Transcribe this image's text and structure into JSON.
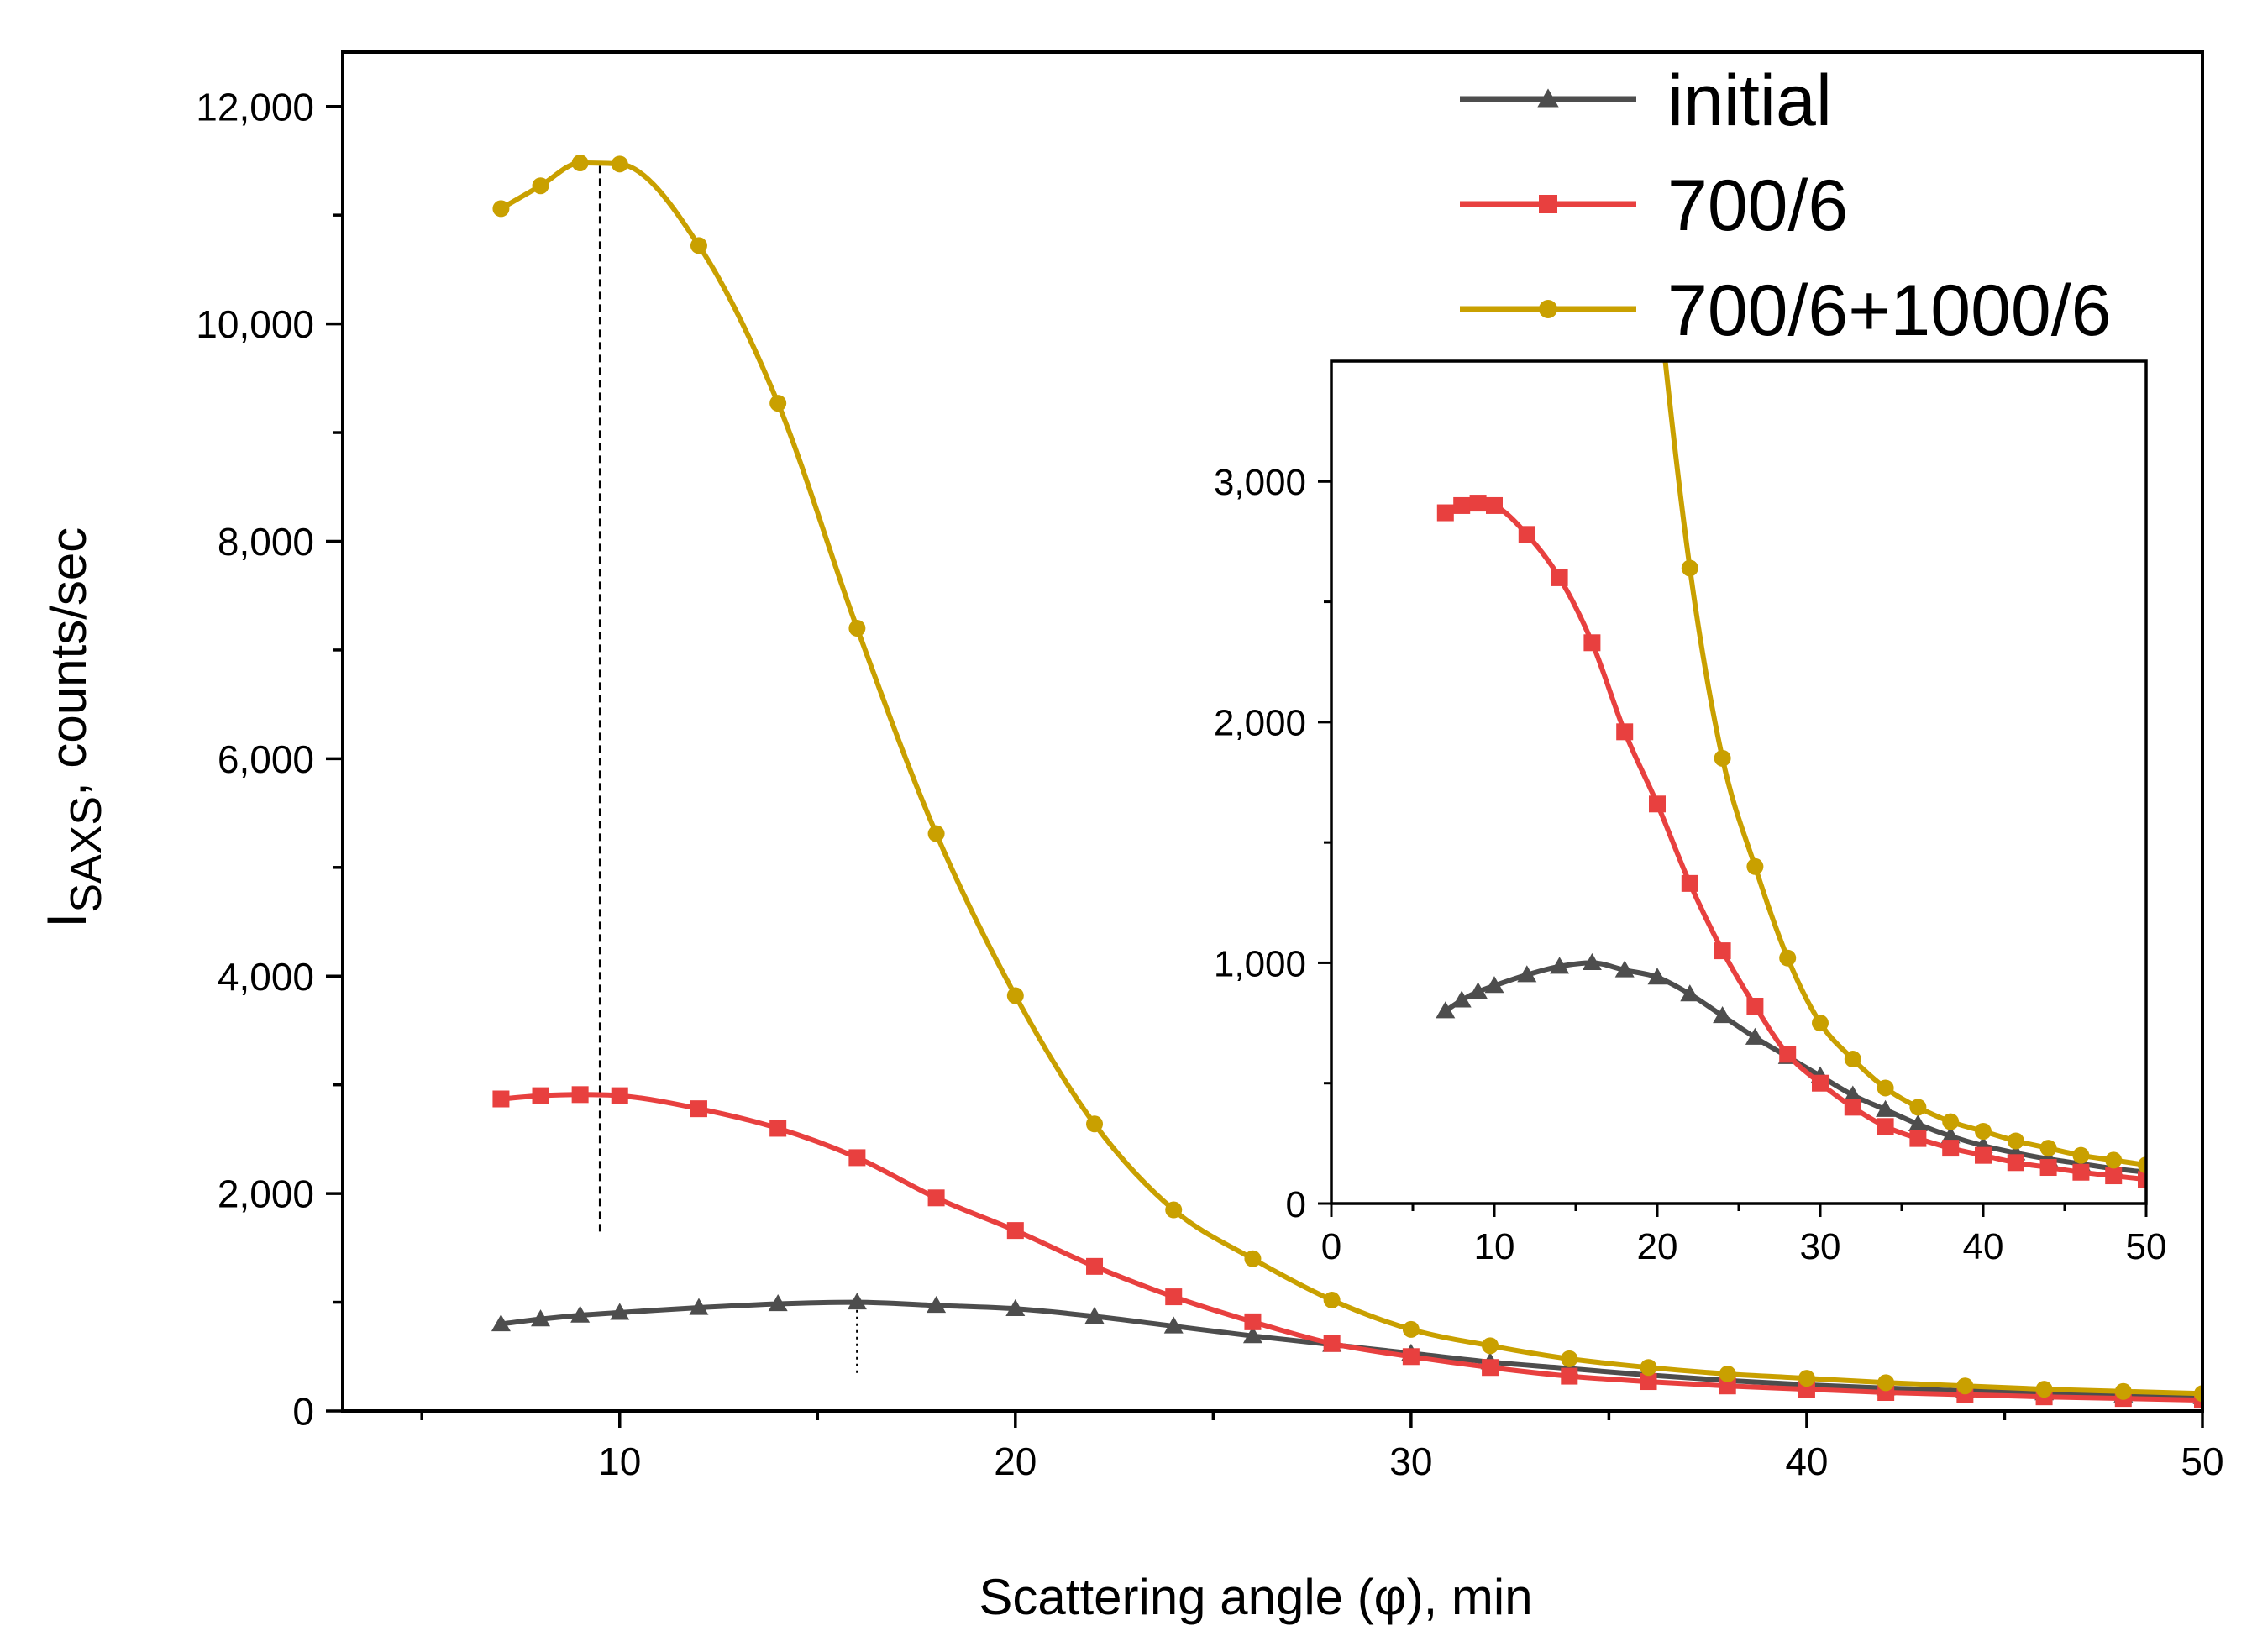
{
  "chart_data": [
    {
      "id": "main",
      "type": "line",
      "xlabel": "Scattering angle (φ), min",
      "ylabel_main": "I",
      "ylabel_sub": "SAXS",
      "ylabel_rest": ", counts/sec",
      "xlim": [
        3,
        50
      ],
      "ylim": [
        0,
        12500
      ],
      "xticks": [
        10,
        20,
        30,
        40,
        50
      ],
      "xtick_labels": [
        "10",
        "20",
        "30",
        "40",
        "50"
      ],
      "xminor": [
        5,
        15,
        25,
        35,
        45
      ],
      "yticks": [
        0,
        2000,
        4000,
        6000,
        8000,
        10000,
        12000
      ],
      "ytick_labels": [
        "0",
        "2,000",
        "4,000",
        "6,000",
        "8,000",
        "10,000",
        "12,000"
      ],
      "yminor": [
        1000,
        3000,
        5000,
        7000,
        9000,
        11000
      ],
      "legend": {
        "position": "top-right"
      },
      "annotations": [
        {
          "type": "vline",
          "x": 9.5,
          "y0": 1650,
          "y1": 11480,
          "style": "dashed"
        },
        {
          "type": "vline",
          "x": 16,
          "y0": 350,
          "y1": 1000,
          "style": "dotted"
        }
      ],
      "series": [
        {
          "name": "initial",
          "color": "#4d4d4d",
          "marker": "triangle",
          "x": [
            7,
            8,
            9,
            10,
            12,
            14,
            16,
            18,
            20,
            22,
            24,
            26,
            28,
            30,
            32,
            34,
            36,
            38,
            40,
            42,
            44,
            46,
            48,
            50
          ],
          "y": [
            800,
            845,
            880,
            905,
            950,
            985,
            1000,
            970,
            940,
            870,
            780,
            690,
            610,
            530,
            450,
            390,
            330,
            280,
            240,
            210,
            185,
            165,
            145,
            130
          ]
        },
        {
          "name": "700/6",
          "color": "#e8403f",
          "marker": "square",
          "x": [
            7,
            8,
            9,
            10,
            12,
            14,
            16,
            18,
            20,
            22,
            24,
            26,
            28,
            30,
            32,
            34,
            36,
            38,
            40,
            42,
            44,
            46,
            48,
            50
          ],
          "y": [
            2870,
            2900,
            2910,
            2900,
            2780,
            2600,
            2330,
            1960,
            1660,
            1330,
            1050,
            820,
            620,
            500,
            400,
            320,
            270,
            230,
            200,
            170,
            150,
            130,
            115,
            100
          ]
        },
        {
          "name": "700/6+1000/6",
          "color": "#c9a000",
          "marker": "circle",
          "x": [
            7,
            8,
            9,
            10,
            12,
            14,
            16,
            18,
            20,
            22,
            24,
            26,
            28,
            30,
            32,
            34,
            36,
            38,
            40,
            42,
            44,
            46,
            48,
            50
          ],
          "y": [
            11060,
            11270,
            11480,
            11470,
            10720,
            9270,
            7200,
            5310,
            3820,
            2640,
            1850,
            1400,
            1020,
            750,
            600,
            480,
            400,
            340,
            300,
            260,
            230,
            200,
            180,
            160
          ]
        }
      ]
    },
    {
      "id": "inset",
      "type": "line",
      "xlim": [
        0,
        50
      ],
      "ylim": [
        0,
        3500
      ],
      "xticks": [
        0,
        10,
        20,
        30,
        40,
        50
      ],
      "xtick_labels": [
        "0",
        "10",
        "20",
        "30",
        "40",
        "50"
      ],
      "xminor": [
        5,
        15,
        25,
        35,
        45
      ],
      "yticks": [
        0,
        1000,
        2000,
        3000
      ],
      "ytick_labels": [
        "0",
        "1,000",
        "2,000",
        "3,000"
      ],
      "yminor": [
        500,
        1500,
        2500
      ],
      "series_ref": [
        "initial",
        "700/6",
        "700/6+1000/6"
      ]
    }
  ]
}
